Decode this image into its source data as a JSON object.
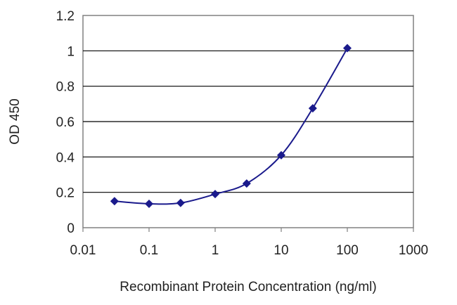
{
  "chart_data": {
    "type": "scatter",
    "title": "",
    "xlabel": "Recombinant Protein Concentration (ng/ml)",
    "ylabel": "OD 450",
    "xscale": "log",
    "xlim": [
      0.01,
      1000
    ],
    "ylim": [
      0,
      1.2
    ],
    "x_ticks": [
      "0.01",
      "0.1",
      "1",
      "10",
      "100",
      "1000"
    ],
    "y_ticks": [
      "0",
      "0.2",
      "0.4",
      "0.6",
      "0.8",
      "1",
      "1.2"
    ],
    "grid": "horizontal",
    "legend": "none",
    "series": [
      {
        "color": "#1a1a8c",
        "marker": "diamond",
        "x": [
          0.03,
          0.1,
          0.3,
          1,
          3,
          10,
          30,
          100
        ],
        "y": [
          0.15,
          0.135,
          0.14,
          0.19,
          0.25,
          0.41,
          0.675,
          1.015
        ]
      }
    ]
  }
}
